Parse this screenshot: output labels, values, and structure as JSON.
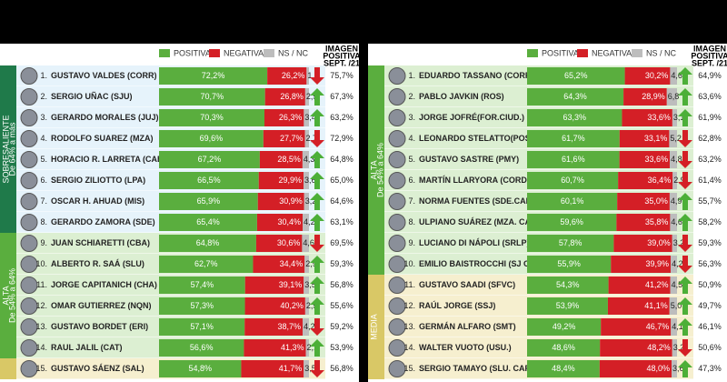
{
  "colors": {
    "positive": "#5aae3e",
    "negative": "#d41f26",
    "nsnc": "#bdbdbd",
    "up": "#4caf38",
    "down": "#d41f26"
  },
  "legend": {
    "positive": "POSITIVA",
    "negative": "NEGATIVA",
    "nsnc": "NS / NC",
    "previous": [
      "IMAGEN",
      "POSITIVA",
      "SEPT. /21"
    ]
  },
  "panels": [
    {
      "groups": [
        {
          "label": "SOBRESALIENTE",
          "sublabel": "De 64% a más",
          "color": "#1f7a4a",
          "row_color": "#e6f3fb"
        },
        {
          "label": "ALTA",
          "sublabel": "De 54% a 64%",
          "color": "#5aae3e",
          "row_color": "#dcefd2"
        },
        {
          "color": "#d9c866",
          "row_color": "#f6efcf"
        }
      ],
      "rows": [
        {
          "group": 0,
          "rank": "1.",
          "name": "GUSTAVO VALDES (CORR)",
          "positive": 72.2,
          "positive_label": "72,2%",
          "negative": 26.2,
          "negative_label": "26,2%",
          "nsnc": 1.6,
          "nsnc_label": "1,6",
          "trend": "down",
          "previous": "75,7%"
        },
        {
          "group": 0,
          "rank": "2.",
          "name": "SERGIO UÑAC (SJU)",
          "positive": 70.7,
          "positive_label": "70,7%",
          "negative": 26.8,
          "negative_label": "26,8%",
          "nsnc": 2.5,
          "nsnc_label": "2,5",
          "trend": "up",
          "previous": "67,3%"
        },
        {
          "group": 0,
          "rank": "3.",
          "name": "GERARDO MORALES (JUJ)",
          "positive": 70.3,
          "positive_label": "70,3%",
          "negative": 26.3,
          "negative_label": "26,3%",
          "nsnc": 3.4,
          "nsnc_label": "3,4",
          "trend": "up",
          "previous": "63,2%"
        },
        {
          "group": 0,
          "rank": "4.",
          "name": "RODOLFO SUAREZ (MZA)",
          "positive": 69.6,
          "positive_label": "69,6%",
          "negative": 27.7,
          "negative_label": "27,7%",
          "nsnc": 2.7,
          "nsnc_label": "2,7",
          "trend": "down",
          "previous": "72,9%"
        },
        {
          "group": 0,
          "rank": "5.",
          "name": "HORACIO R. LARRETA (CABA)",
          "positive": 67.2,
          "positive_label": "67,2%",
          "negative": 28.5,
          "negative_label": "28,5%",
          "nsnc": 4.3,
          "nsnc_label": "4,3",
          "trend": "up",
          "previous": "64,8%"
        },
        {
          "group": 0,
          "rank": "6.",
          "name": "SERGIO ZILIOTTO (LPA)",
          "positive": 66.5,
          "positive_label": "66,5%",
          "negative": 29.9,
          "negative_label": "29,9%",
          "nsnc": 3.6,
          "nsnc_label": "3,6",
          "trend": "up",
          "previous": "65,0%"
        },
        {
          "group": 0,
          "rank": "7.",
          "name": "OSCAR H. AHUAD (MIS)",
          "positive": 65.9,
          "positive_label": "65,9%",
          "negative": 30.9,
          "negative_label": "30,9%",
          "nsnc": 3.2,
          "nsnc_label": "3,2",
          "trend": "up",
          "previous": "64,6%"
        },
        {
          "group": 0,
          "rank": "8.",
          "name": "GERARDO ZAMORA (SDE)",
          "positive": 65.4,
          "positive_label": "65,4%",
          "negative": 30.4,
          "negative_label": "30,4%",
          "nsnc": 4.2,
          "nsnc_label": "4,2",
          "trend": "up",
          "previous": "63,1%"
        },
        {
          "group": 1,
          "rank": "9.",
          "name": "JUAN SCHIARETTI (CBA)",
          "positive": 64.8,
          "positive_label": "64,8%",
          "negative": 30.6,
          "negative_label": "30,6%",
          "nsnc": 4.6,
          "nsnc_label": "4,6",
          "trend": "down",
          "previous": "69,5%"
        },
        {
          "group": 1,
          "rank": "10.",
          "name": "ALBERTO R. SAÁ (SLU)",
          "positive": 62.7,
          "positive_label": "62,7%",
          "negative": 34.4,
          "negative_label": "34,4%",
          "nsnc": 2.9,
          "nsnc_label": "2,9",
          "trend": "up",
          "previous": "59,3%"
        },
        {
          "group": 1,
          "rank": "11.",
          "name": "JORGE CAPITANICH (CHA)",
          "positive": 57.4,
          "positive_label": "57,4%",
          "negative": 39.1,
          "negative_label": "39,1%",
          "nsnc": 3.5,
          "nsnc_label": "3,5",
          "trend": "up",
          "previous": "56,8%"
        },
        {
          "group": 1,
          "rank": "12.",
          "name": "OMAR GUTIERREZ (NQN)",
          "positive": 57.3,
          "positive_label": "57,3%",
          "negative": 40.2,
          "negative_label": "40,2%",
          "nsnc": 2.5,
          "nsnc_label": "2,5",
          "trend": "up",
          "previous": "55,6%"
        },
        {
          "group": 1,
          "rank": "13.",
          "name": "GUSTAVO BORDET (ERI)",
          "positive": 57.1,
          "positive_label": "57,1%",
          "negative": 38.7,
          "negative_label": "38,7%",
          "nsnc": 4.2,
          "nsnc_label": "4,2",
          "trend": "down",
          "previous": "59,2%"
        },
        {
          "group": 1,
          "rank": "14.",
          "name": "RAUL JALIL (CAT)",
          "positive": 56.6,
          "positive_label": "56,6%",
          "negative": 41.3,
          "negative_label": "41,3%",
          "nsnc": 2.1,
          "nsnc_label": "2,1",
          "trend": "up",
          "previous": "53,9%"
        },
        {
          "group": 2,
          "rank": "15.",
          "name": "GUSTAVO SÁENZ (SAL)",
          "positive": 54.8,
          "positive_label": "54,8%",
          "negative": 41.7,
          "negative_label": "41,7%",
          "nsnc": 3.5,
          "nsnc_label": "3,5",
          "trend": "down",
          "previous": "56,8%"
        }
      ]
    },
    {
      "groups": [
        {
          "label": "ALTA",
          "sublabel": "De 54% a 64%",
          "color": "#5aae3e",
          "row_color": "#dcefd2"
        },
        {
          "label": "MEDIA",
          "color": "#d9c866",
          "row_color": "#f6efcf"
        }
      ],
      "rows": [
        {
          "group": 0,
          "rank": "1.",
          "name": "EDUARDO TASSANO (CORR)",
          "positive": 65.2,
          "positive_label": "65,2%",
          "negative": 30.2,
          "negative_label": "30,2%",
          "nsnc": 4.6,
          "nsnc_label": "4,6",
          "trend": "up",
          "previous": "64,9%"
        },
        {
          "group": 0,
          "rank": "2.",
          "name": "PABLO JAVKIN (ROS)",
          "positive": 64.3,
          "positive_label": "64,3%",
          "negative": 28.9,
          "negative_label": "28,9%",
          "nsnc": 6.8,
          "nsnc_label": "6,8",
          "trend": "up",
          "previous": "63,6%"
        },
        {
          "group": 0,
          "rank": "3.",
          "name": "JORGE JOFRÉ(FOR.CIUD.)",
          "positive": 63.3,
          "positive_label": "63,3%",
          "negative": 33.6,
          "negative_label": "33,6%",
          "nsnc": 3.1,
          "nsnc_label": "3,1",
          "trend": "up",
          "previous": "61,9%"
        },
        {
          "group": 0,
          "rank": "4.",
          "name": "LEONARDO STELATTO(POS.)",
          "positive": 61.7,
          "positive_label": "61,7%",
          "negative": 33.1,
          "negative_label": "33,1%",
          "nsnc": 5.2,
          "nsnc_label": "5,2",
          "trend": "down",
          "previous": "62,8%"
        },
        {
          "group": 0,
          "rank": "5.",
          "name": "GUSTAVO SASTRE (PMY)",
          "positive": 61.6,
          "positive_label": "61,6%",
          "negative": 33.6,
          "negative_label": "33,6%",
          "nsnc": 4.8,
          "nsnc_label": "4,8",
          "trend": "down",
          "previous": "63,2%"
        },
        {
          "group": 0,
          "rank": "6.",
          "name": "MARTÍN LLARYORA (CORD)",
          "positive": 60.7,
          "positive_label": "60,7%",
          "negative": 36.4,
          "negative_label": "36,4%",
          "nsnc": 2.9,
          "nsnc_label": "2,9",
          "trend": "down",
          "previous": "61,4%"
        },
        {
          "group": 0,
          "rank": "7.",
          "name": "NORMA FUENTES (SDE.CAP)",
          "positive": 60.1,
          "positive_label": "60,1%",
          "negative": 35.0,
          "negative_label": "35,0%",
          "nsnc": 4.9,
          "nsnc_label": "4,9",
          "trend": "up",
          "previous": "55,7%"
        },
        {
          "group": 0,
          "rank": "8.",
          "name": "ULPIANO SUÁREZ (MZA. CAP.)",
          "positive": 59.6,
          "positive_label": "59,6%",
          "negative": 35.8,
          "negative_label": "35,8%",
          "nsnc": 4.6,
          "nsnc_label": "4,6",
          "trend": "up",
          "previous": "58,2%"
        },
        {
          "group": 0,
          "rank": "9.",
          "name": "LUCIANO DI NÁPOLI (SRLP)",
          "positive": 57.8,
          "positive_label": "57,8%",
          "negative": 39.0,
          "negative_label": "39,0%",
          "nsnc": 3.2,
          "nsnc_label": "3,2",
          "trend": "down",
          "previous": "59,3%"
        },
        {
          "group": 0,
          "rank": "10.",
          "name": "EMILIO BAISTROCCHI (SJ CAP)",
          "positive": 55.9,
          "positive_label": "55,9%",
          "negative": 39.9,
          "negative_label": "39,9%",
          "nsnc": 4.2,
          "nsnc_label": "4,2",
          "trend": "down",
          "previous": "56,3%"
        },
        {
          "group": 1,
          "rank": "11.",
          "name": "GUSTAVO SAADI (SFVC)",
          "positive": 54.3,
          "positive_label": "54,3%",
          "negative": 41.2,
          "negative_label": "41,2%",
          "nsnc": 4.5,
          "nsnc_label": "4,5",
          "trend": "up",
          "previous": "50,9%"
        },
        {
          "group": 1,
          "rank": "12.",
          "name": "RAÚL JORGE (SSJ)",
          "positive": 53.9,
          "positive_label": "53,9%",
          "negative": 41.1,
          "negative_label": "41,1%",
          "nsnc": 5.0,
          "nsnc_label": "5,0",
          "trend": "up",
          "previous": "49,7%"
        },
        {
          "group": 1,
          "rank": "13.",
          "name": "GERMÁN ALFARO (SMT)",
          "positive": 49.2,
          "positive_label": "49,2%",
          "negative": 46.7,
          "negative_label": "46,7%",
          "nsnc": 4.1,
          "nsnc_label": "4,1",
          "trend": "up",
          "previous": "46,1%"
        },
        {
          "group": 1,
          "rank": "14.",
          "name": "WALTER VUOTO (USU.)",
          "positive": 48.6,
          "positive_label": "48,6%",
          "negative": 48.2,
          "negative_label": "48,2%",
          "nsnc": 3.2,
          "nsnc_label": "3,2",
          "trend": "down",
          "previous": "50,6%"
        },
        {
          "group": 1,
          "rank": "15.",
          "name": "SERGIO TAMAYO (SLU. CAP)",
          "positive": 48.4,
          "positive_label": "48,4%",
          "negative": 48.0,
          "negative_label": "48,0%",
          "nsnc": 3.6,
          "nsnc_label": "3,6",
          "trend": "up",
          "previous": "47,3%"
        }
      ]
    }
  ]
}
